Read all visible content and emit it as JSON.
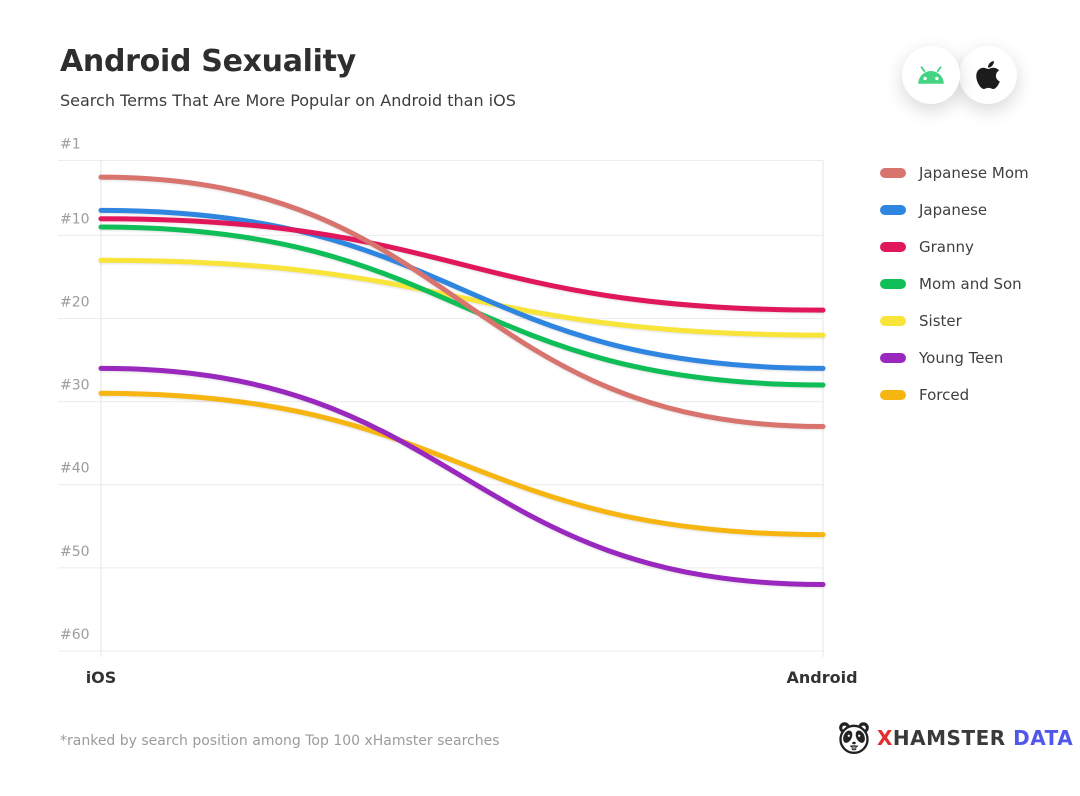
{
  "page": {
    "title": "Android Sexuality",
    "subtitle": "Search Terms That Are More Popular on Android than iOS",
    "footnote": "*ranked by search position among Top 100 xHamster searches"
  },
  "badges": {
    "android_icon": "android-robot",
    "apple_icon": "apple-logo",
    "android_green": "#43d483",
    "apple_black": "#1c1c1c"
  },
  "logo": {
    "icon": "hamster-face",
    "x": "X",
    "hamster": "HAMSTER",
    "data": "DATA",
    "x_color": "#e0312e",
    "hamster_color": "#3a3a3a",
    "data_color": "#5157e8"
  },
  "chart_data": {
    "type": "line",
    "title": "Android Sexuality",
    "subtitle": "Search Terms That Are More Popular on Android than iOS",
    "categories": [
      "iOS",
      "Android"
    ],
    "y_axis": {
      "unit": "search rank",
      "inverted": true,
      "range": [
        1,
        60
      ],
      "ticks": [
        1,
        10,
        20,
        30,
        40,
        50,
        60
      ],
      "tick_labels": [
        "#1",
        "#10",
        "#20",
        "#30",
        "#40",
        "#50",
        "#60"
      ]
    },
    "series": [
      {
        "name": "Japanese Mom",
        "color": "#d9736e",
        "values": [
          3,
          33
        ]
      },
      {
        "name": "Japanese",
        "color": "#2e86e0",
        "values": [
          7,
          26
        ]
      },
      {
        "name": "Granny",
        "color": "#e0175b",
        "values": [
          8,
          19
        ]
      },
      {
        "name": "Mom and Son",
        "color": "#10be58",
        "values": [
          9,
          28
        ]
      },
      {
        "name": "Sister",
        "color": "#f9e439",
        "values": [
          13,
          22
        ]
      },
      {
        "name": "Young Teen",
        "color": "#9a27be",
        "values": [
          26,
          52
        ]
      },
      {
        "name": "Forced",
        "color": "#f6b511",
        "values": [
          29,
          46
        ]
      }
    ],
    "z_order": [
      "Sister",
      "Mom and Son",
      "Japanese",
      "Granny",
      "Forced",
      "Young Teen",
      "Japanese Mom"
    ],
    "legend_position": "right",
    "grid": true,
    "grid_color": "#ececec",
    "tick_label_color": "#9c9c9c",
    "curve": "sigmoid"
  }
}
